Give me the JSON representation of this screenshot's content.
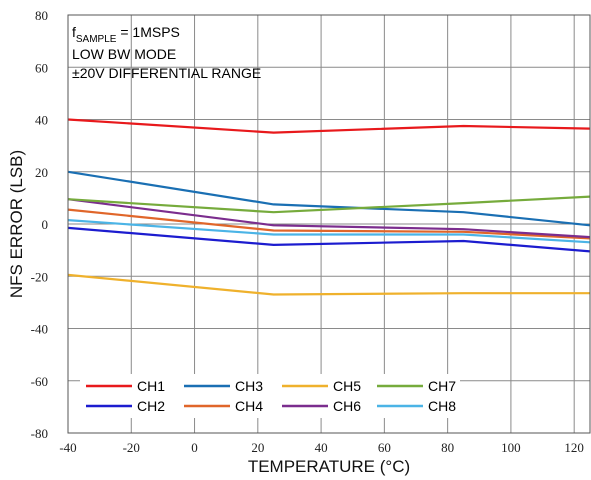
{
  "chart_data": {
    "type": "line",
    "annotations": {
      "line1_prefix": "f",
      "line1_subscript": "SAMPLE",
      "line1_suffix": " = 1MSPS",
      "line2": "LOW BW MODE",
      "line3_symbol": "±",
      "line3_text": "20V DIFFERENTIAL RANGE"
    },
    "xlabel": "TEMPERATURE (°C)",
    "ylabel": "NFS ERROR (LSB)",
    "xlim": [
      -40,
      125
    ],
    "ylim": [
      -80,
      80
    ],
    "xticks": [
      -40,
      -20,
      0,
      20,
      40,
      60,
      80,
      100,
      120
    ],
    "yticks": [
      -80,
      -60,
      -40,
      -20,
      0,
      20,
      40,
      60,
      80
    ],
    "grid": true,
    "legend_position": "bottom-left",
    "x": [
      -40,
      25,
      85,
      125
    ],
    "series": [
      {
        "name": "CH1",
        "color": "#e8191c",
        "values": [
          40,
          35,
          37.5,
          36.5
        ]
      },
      {
        "name": "CH2",
        "color": "#1c1ccf",
        "values": [
          -1.5,
          -8,
          -6.5,
          -10.5
        ]
      },
      {
        "name": "CH3",
        "color": "#1a6fb3",
        "values": [
          20,
          7.5,
          4.5,
          -0.5
        ]
      },
      {
        "name": "CH4",
        "color": "#e0662a",
        "values": [
          5.5,
          -2.5,
          -3,
          -5.5
        ]
      },
      {
        "name": "CH5",
        "color": "#efb12c",
        "values": [
          -19.5,
          -27,
          -26.5,
          -26.5
        ]
      },
      {
        "name": "CH6",
        "color": "#7b2d8e",
        "values": [
          9.5,
          -0.5,
          -2,
          -5
        ]
      },
      {
        "name": "CH7",
        "color": "#76ab3c",
        "values": [
          9.5,
          4.5,
          8,
          10.5
        ]
      },
      {
        "name": "CH8",
        "color": "#4bb4e6",
        "values": [
          1.5,
          -4,
          -4,
          -7
        ]
      }
    ]
  }
}
